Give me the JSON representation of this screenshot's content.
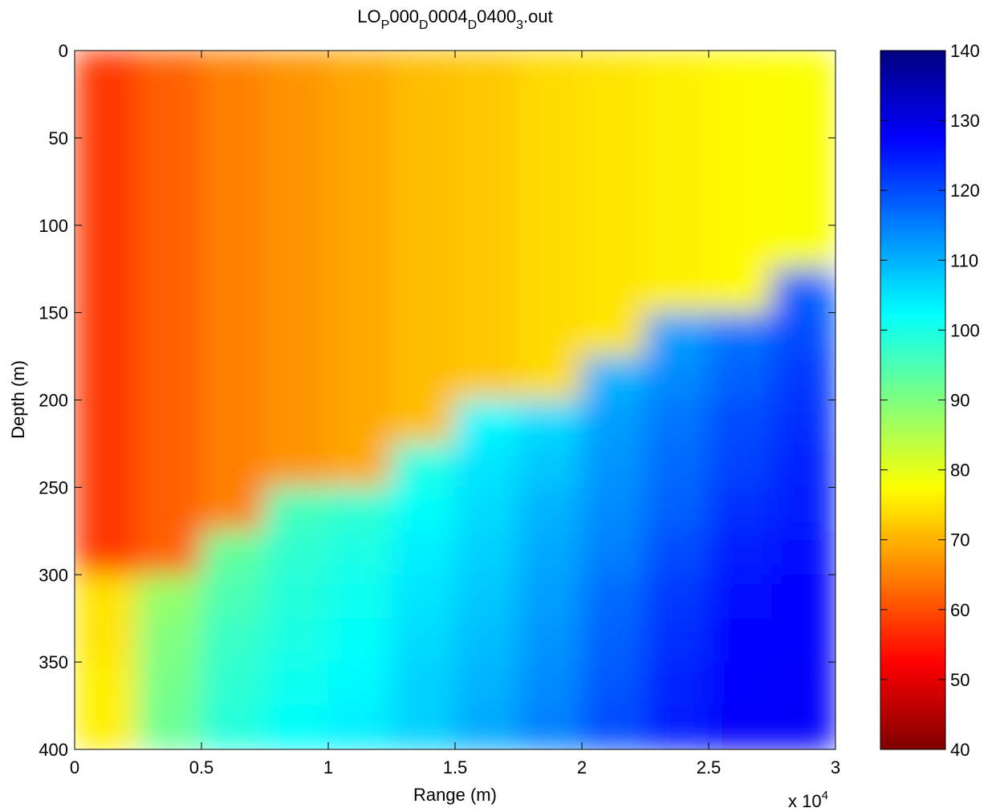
{
  "chart_data": {
    "type": "heatmap",
    "title_parts": [
      "LO",
      "P",
      "000",
      "D",
      "0004",
      "D",
      "0400",
      "3",
      ".out"
    ],
    "xlabel": "Range (m)",
    "ylabel": "Depth (m)",
    "x_multiplier_base": "x 10",
    "x_multiplier_power": "4",
    "colormap": "jet_reversed",
    "xlim": [
      0,
      30000
    ],
    "xticks": [
      {
        "value": 0,
        "label": "0"
      },
      {
        "value": 5000,
        "label": "0.5"
      },
      {
        "value": 10000,
        "label": "1"
      },
      {
        "value": 15000,
        "label": "1.5"
      },
      {
        "value": 20000,
        "label": "2"
      },
      {
        "value": 25000,
        "label": "2.5"
      },
      {
        "value": 30000,
        "label": "3"
      }
    ],
    "ylim": [
      400,
      0
    ],
    "yticks": [
      0,
      50,
      100,
      150,
      200,
      250,
      300,
      350,
      400
    ],
    "clim": [
      40,
      140
    ],
    "cticks": [
      40,
      50,
      60,
      70,
      80,
      90,
      100,
      110,
      120,
      130,
      140
    ],
    "x": [
      1250,
      3750,
      6250,
      8750,
      11250,
      13750,
      16250,
      18750,
      21250,
      23750,
      26250,
      28750
    ],
    "y": [
      12.5,
      37.5,
      62.5,
      87.5,
      112.5,
      137.5,
      162.5,
      187.5,
      212.5,
      237.5,
      262.5,
      287.5,
      312.5,
      337.5,
      362.5,
      387.5
    ],
    "z": [
      [
        58,
        62,
        65,
        67,
        69,
        71,
        72,
        74,
        75,
        76,
        77,
        78
      ],
      [
        58,
        62,
        65,
        67,
        69,
        71,
        72,
        74,
        75,
        76,
        77,
        78
      ],
      [
        58,
        62,
        65,
        67,
        69,
        71,
        72,
        74,
        75,
        76,
        77,
        78
      ],
      [
        58,
        62,
        65,
        67,
        69,
        71,
        72,
        74,
        75,
        76,
        77,
        78
      ],
      [
        58,
        62,
        65,
        67,
        69,
        71,
        72,
        74,
        75,
        76,
        77,
        78
      ],
      [
        58,
        62,
        65,
        67,
        69,
        71,
        72,
        74,
        75,
        76,
        77,
        118
      ],
      [
        58,
        62,
        65,
        67,
        69,
        71,
        72,
        74,
        75,
        112,
        116,
        120
      ],
      [
        58,
        62,
        65,
        67,
        69,
        71,
        72,
        74,
        110,
        114,
        118,
        122
      ],
      [
        58,
        62,
        65,
        67,
        69,
        71,
        103,
        106,
        112,
        116,
        120,
        123
      ],
      [
        58,
        62,
        65,
        67,
        69,
        100,
        105,
        108,
        113,
        117,
        121,
        124
      ],
      [
        58,
        62,
        65,
        96,
        98,
        102,
        106,
        110,
        114,
        118,
        123,
        125
      ],
      [
        58,
        62,
        93,
        98,
        100,
        104,
        107,
        111,
        115,
        120,
        125,
        126
      ],
      [
        75,
        88,
        95,
        99,
        101,
        105,
        108,
        112,
        117,
        122,
        126,
        127
      ],
      [
        75,
        90,
        97,
        100,
        102,
        106,
        109,
        113,
        118,
        123,
        127,
        127
      ],
      [
        76,
        91,
        98,
        101,
        103,
        107,
        110,
        114,
        119,
        124,
        127,
        128
      ],
      [
        76,
        92,
        99,
        102,
        104,
        107,
        111,
        115,
        120,
        125,
        128,
        128
      ]
    ]
  }
}
